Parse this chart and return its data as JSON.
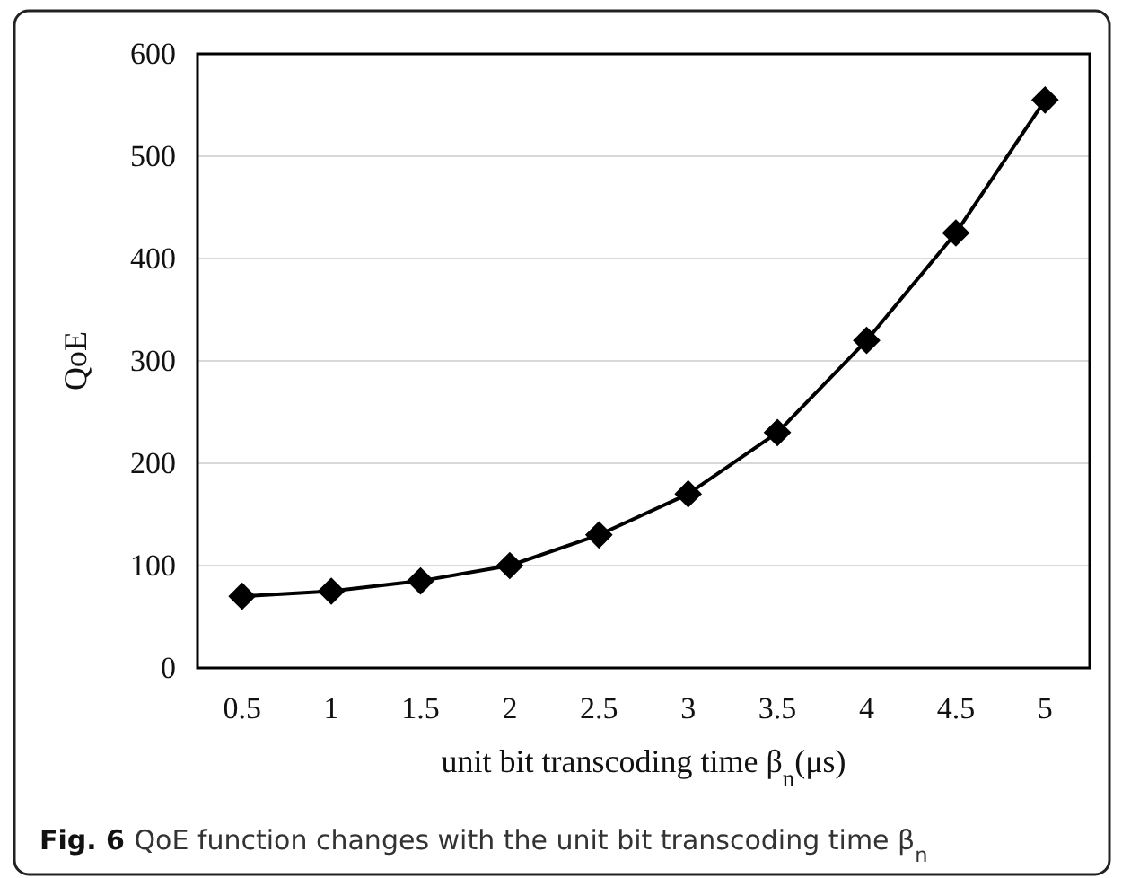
{
  "chart_data": {
    "type": "line",
    "xlabel": "unit bit transcoding time β$_{n}$(μs)",
    "ylabel": "QoE",
    "annotations": [
      "Fig. 6 QoE function changes with the unit bit transcoding time β$_{n}$"
    ],
    "categories": [
      "0.5",
      "1",
      "1.5",
      "2",
      "2.5",
      "3",
      "3.5",
      "4",
      "4.5",
      "5"
    ],
    "series": [
      {
        "color": "#000000",
        "values": [
          70,
          75,
          85,
          100,
          130,
          170,
          230,
          320,
          425,
          555
        ]
      }
    ],
    "ylim": [
      0,
      600
    ],
    "yticks": [
      0,
      100,
      200,
      300,
      400,
      500,
      600
    ],
    "grid": "y",
    "marker": "diamond",
    "line_style": "solid"
  }
}
